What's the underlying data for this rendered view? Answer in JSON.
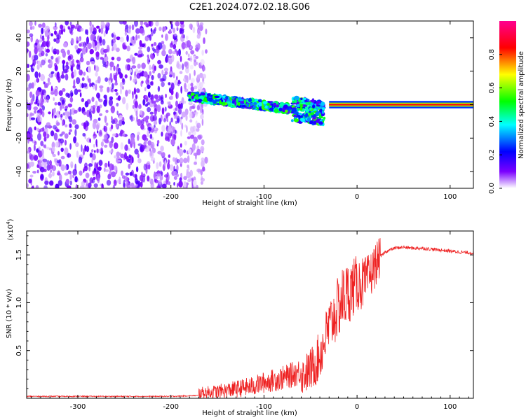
{
  "title": "C2E1.2024.072.02.18.G06",
  "chart_data": [
    {
      "type": "heatmap",
      "xlabel": "Height of straight line (km)",
      "ylabel": "Frequency (Hz)",
      "xlim": [
        -355,
        125
      ],
      "ylim": [
        -50,
        50
      ],
      "xticks": [
        -300,
        -200,
        -100,
        0,
        100
      ],
      "yticks": [
        -40,
        -20,
        0,
        20,
        40
      ],
      "xtick_labels": [
        "-300",
        "-200",
        "-100",
        "0",
        "100"
      ],
      "ytick_labels": [
        "-40",
        "-20",
        "0",
        "20",
        "40"
      ],
      "grid": false,
      "colorbar": {
        "label": "Normalized spectral amplitude",
        "range": [
          0,
          1
        ],
        "ticks": [
          0.0,
          0.2,
          0.4,
          0.6,
          0.8
        ],
        "tick_labels": [
          "0.0",
          "0.2",
          "0.4",
          "0.6",
          "0.8"
        ],
        "colormap": [
          "#ffffff",
          "#7b00ff",
          "#0000ff",
          "#00ffff",
          "#00ff00",
          "#ffff00",
          "#ff0000",
          "#ff0090"
        ]
      },
      "regions": [
        {
          "x": [
            -355,
            -170
          ],
          "description_level": "noise",
          "amplitude_range": [
            0.05,
            0.15
          ]
        },
        {
          "x": [
            -180,
            -35
          ],
          "center_freq": [
            5,
            -5
          ],
          "amplitude_range": [
            0.2,
            0.6
          ]
        },
        {
          "x": [
            -30,
            125
          ],
          "center_freq": 0,
          "amplitude_range": [
            0.8,
            1.0
          ]
        }
      ]
    },
    {
      "type": "line",
      "xlabel": "Height of straight line (km)",
      "ylabel": "SNR (10 * v/v)",
      "scale_label": "(x10^4)",
      "xlim": [
        -355,
        125
      ],
      "ylim": [
        0,
        1.75
      ],
      "xticks": [
        -300,
        -200,
        -100,
        0,
        100
      ],
      "yticks": [
        0.5,
        1.0,
        1.5
      ],
      "xtick_labels": [
        "-300",
        "-200",
        "-100",
        "0",
        "100"
      ],
      "ytick_labels": [
        "0.5",
        "1.0",
        "1.5"
      ],
      "grid": false,
      "series": [
        {
          "color": "#ee2222",
          "x": [
            -355,
            -300,
            -250,
            -200,
            -170,
            -150,
            -130,
            -110,
            -100,
            -90,
            -80,
            -70,
            -60,
            -50,
            -45,
            -40,
            -35,
            -30,
            -25,
            -20,
            -15,
            -10,
            -5,
            0,
            5,
            10,
            15,
            20,
            25,
            30,
            40,
            50,
            60,
            70,
            80,
            90,
            100,
            110,
            125
          ],
          "y": [
            0.02,
            0.02,
            0.02,
            0.02,
            0.03,
            0.04,
            0.06,
            0.09,
            0.12,
            0.14,
            0.16,
            0.19,
            0.23,
            0.3,
            0.36,
            0.45,
            0.6,
            0.75,
            0.85,
            0.95,
            1.05,
            1.1,
            1.15,
            1.2,
            1.2,
            1.22,
            1.3,
            1.4,
            1.48,
            1.53,
            1.57,
            1.58,
            1.57,
            1.57,
            1.56,
            1.55,
            1.54,
            1.53,
            1.52
          ]
        }
      ]
    }
  ]
}
